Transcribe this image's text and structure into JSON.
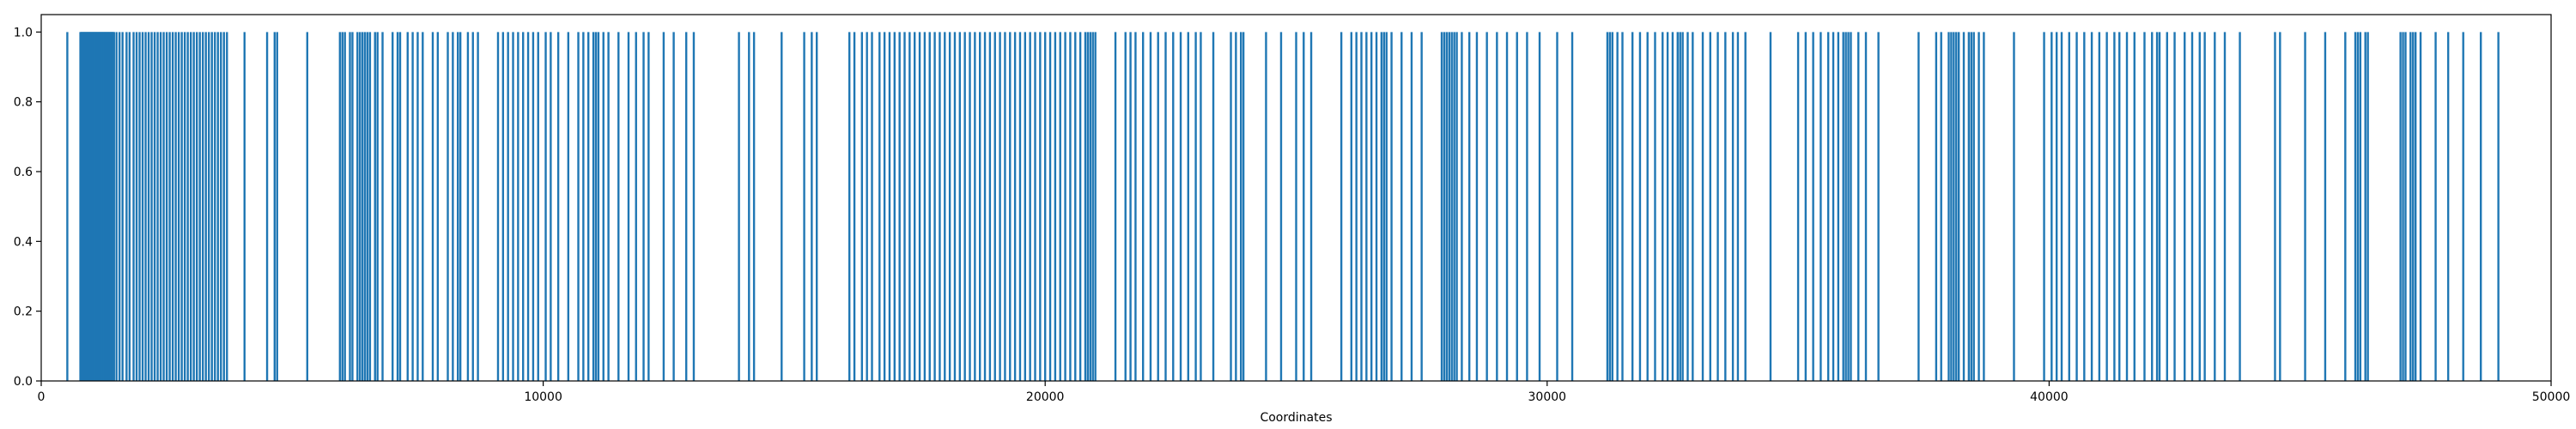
{
  "chart_data": {
    "type": "bar",
    "title": "",
    "xlabel": "Coordinates",
    "ylabel": "",
    "xlim": [
      0,
      50000
    ],
    "ylim": [
      0,
      1.05
    ],
    "xticks": [
      0,
      10000,
      20000,
      30000,
      40000,
      50000
    ],
    "xtick_labels": [
      "0",
      "10000",
      "20000",
      "30000",
      "40000",
      "50000"
    ],
    "yticks": [
      0,
      0.2,
      0.4,
      0.6,
      0.8,
      1.0
    ],
    "ytick_labels": [
      "0.0",
      "0.2",
      "0.4",
      "0.6",
      "0.8",
      "1.0"
    ],
    "grid": false,
    "series_color": "#1f77b4",
    "bar_value": 1.0,
    "positions": [
      520,
      780,
      790,
      800,
      810,
      820,
      830,
      840,
      850,
      860,
      870,
      880,
      890,
      900,
      910,
      920,
      930,
      940,
      950,
      960,
      970,
      980,
      990,
      1000,
      1010,
      1020,
      1030,
      1040,
      1050,
      1060,
      1070,
      1080,
      1090,
      1100,
      1110,
      1120,
      1130,
      1140,
      1150,
      1160,
      1170,
      1180,
      1190,
      1200,
      1210,
      1220,
      1230,
      1240,
      1250,
      1260,
      1270,
      1280,
      1290,
      1300,
      1310,
      1320,
      1330,
      1340,
      1350,
      1360,
      1370,
      1380,
      1390,
      1400,
      1410,
      1420,
      1430,
      1440,
      1450,
      1500,
      1560,
      1620,
      1700,
      1760,
      1840,
      1900,
      1960,
      2020,
      2080,
      2140,
      2200,
      2260,
      2320,
      2380,
      2440,
      2500,
      2560,
      2620,
      2680,
      2740,
      2800,
      2860,
      2920,
      2980,
      3040,
      3100,
      3160,
      3220,
      3280,
      3340,
      3400,
      3460,
      3520,
      3580,
      3640,
      3700,
      4050,
      4500,
      4650,
      4700,
      5300,
      5950,
      6000,
      6050,
      6150,
      6200,
      6300,
      6350,
      6400,
      6450,
      6500,
      6550,
      6650,
      6700,
      6800,
      7000,
      7100,
      7150,
      7300,
      7400,
      7500,
      7600,
      7800,
      7900,
      8100,
      8200,
      8300,
      8350,
      8500,
      8600,
      8700,
      9100,
      9200,
      9300,
      9400,
      9500,
      9600,
      9700,
      9800,
      9900,
      10050,
      10150,
      10300,
      10500,
      10700,
      10800,
      10900,
      11000,
      11050,
      11100,
      11200,
      11300,
      11500,
      11700,
      11850,
      12000,
      12100,
      12400,
      12600,
      12850,
      13000,
      13900,
      14100,
      14200,
      14750,
      15200,
      15350,
      15450,
      16100,
      16200,
      16350,
      16450,
      16550,
      16700,
      16800,
      16900,
      17000,
      17100,
      17200,
      17300,
      17400,
      17500,
      17600,
      17700,
      17800,
      17900,
      18000,
      18100,
      18200,
      18300,
      18400,
      18500,
      18600,
      18700,
      18800,
      18900,
      19000,
      19100,
      19200,
      19300,
      19400,
      19500,
      19600,
      19700,
      19800,
      19900,
      20000,
      20100,
      20200,
      20300,
      20400,
      20500,
      20600,
      20700,
      20800,
      20850,
      20900,
      20950,
      21000,
      21400,
      21600,
      21700,
      21800,
      21950,
      22100,
      22250,
      22400,
      22550,
      22700,
      22850,
      23000,
      23100,
      23350,
      23700,
      23800,
      23900,
      23950,
      24400,
      24700,
      25000,
      25150,
      25300,
      25900,
      26100,
      26200,
      26300,
      26400,
      26500,
      26600,
      26700,
      26750,
      26800,
      26900,
      27100,
      27300,
      27500,
      27900,
      27950,
      28000,
      28050,
      28100,
      28150,
      28200,
      28300,
      28450,
      28600,
      28800,
      29000,
      29200,
      29400,
      29600,
      29850,
      30200,
      30500,
      31200,
      31250,
      31300,
      31400,
      31500,
      31700,
      31850,
      32000,
      32150,
      32300,
      32400,
      32500,
      32600,
      32650,
      32700,
      32800,
      32900,
      33100,
      33250,
      33400,
      33550,
      33700,
      33800,
      33950,
      34450,
      35000,
      35150,
      35300,
      35450,
      35600,
      35700,
      35800,
      35900,
      35950,
      36000,
      36050,
      36200,
      36350,
      36600,
      37400,
      37750,
      37850,
      38000,
      38050,
      38100,
      38150,
      38200,
      38300,
      38400,
      38450,
      38500,
      38600,
      38700,
      39300,
      39900,
      40050,
      40150,
      40250,
      40400,
      40550,
      40700,
      40850,
      41000,
      41150,
      41300,
      41400,
      41550,
      41700,
      41900,
      42050,
      42150,
      42200,
      42350,
      42500,
      42700,
      42850,
      43000,
      43100,
      43300,
      43500,
      43800,
      44500,
      44600,
      45100,
      45500,
      45900,
      46100,
      46150,
      46200,
      46300,
      46350,
      47000,
      47050,
      47100,
      47200,
      47250,
      47300,
      47400,
      47700,
      47950,
      48250,
      48600,
      48950
    ]
  }
}
